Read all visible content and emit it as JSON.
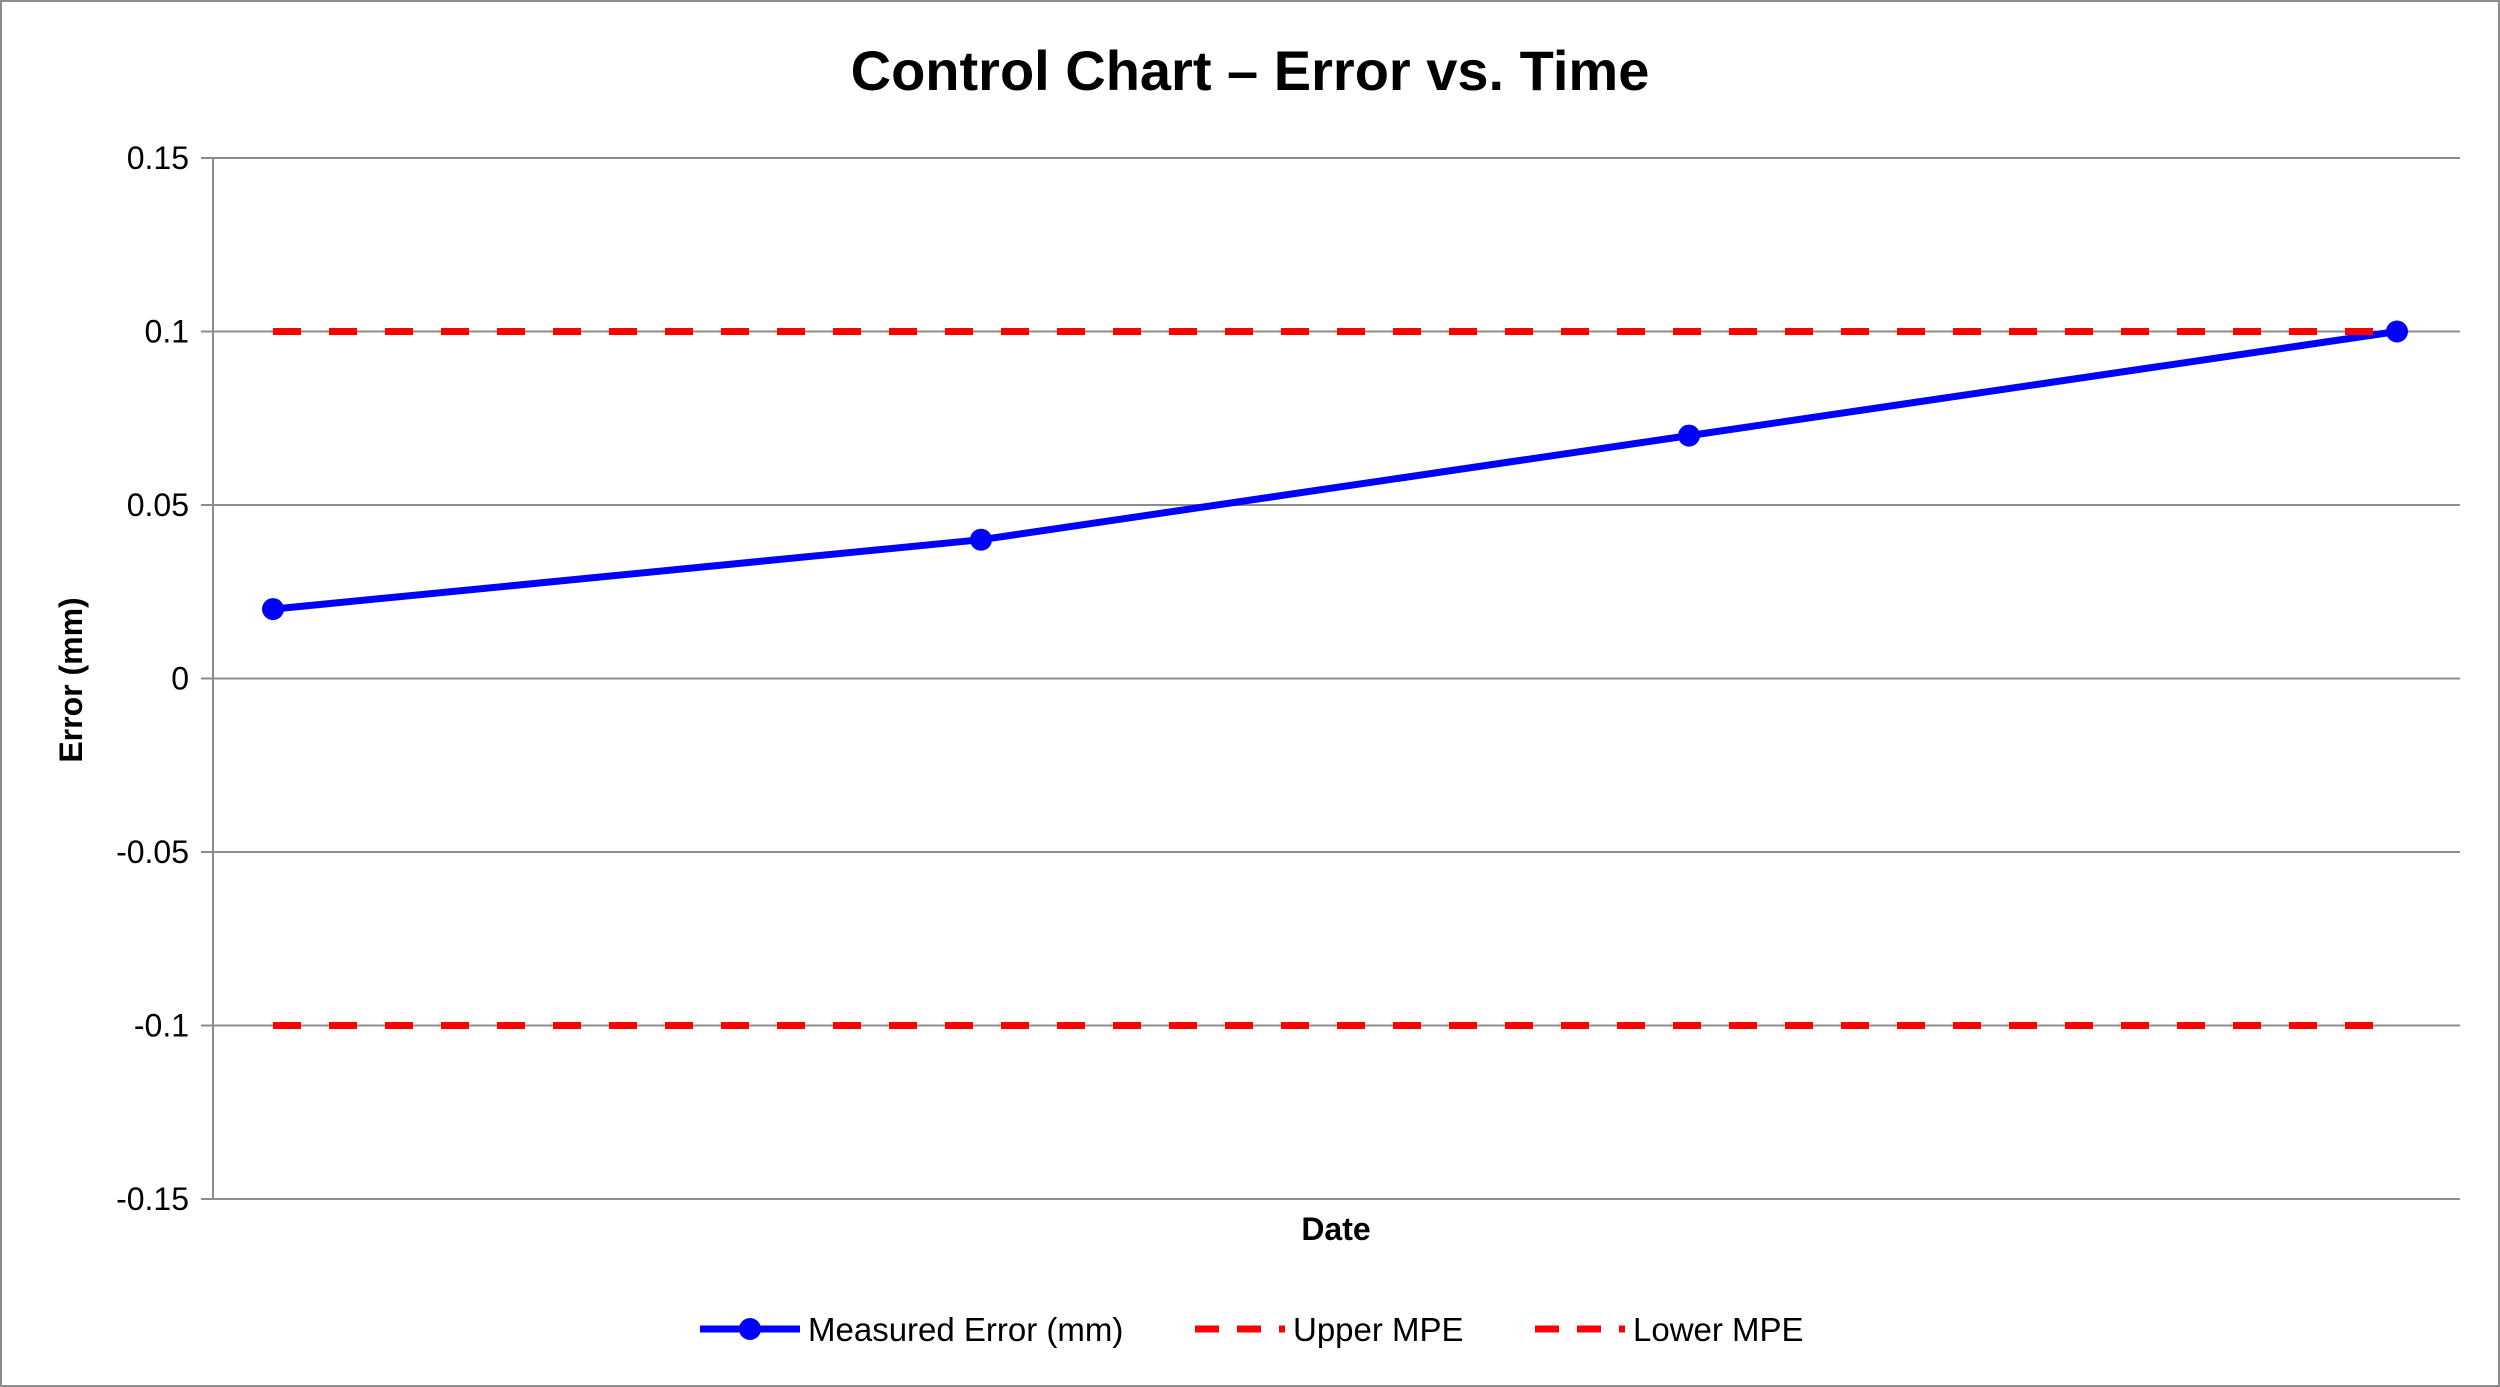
{
  "chart_data": {
    "type": "line",
    "title": "Control Chart – Error vs. Time",
    "xlabel": "Date",
    "ylabel": "Error (mm)",
    "ylim": [
      -0.15,
      0.15
    ],
    "yticks": [
      "0.15",
      "0.1",
      "0.05",
      "0",
      "-0.05",
      "-0.1",
      "-0.15"
    ],
    "ytick_values": [
      0.15,
      0.1,
      0.05,
      0,
      -0.05,
      -0.1,
      -0.15
    ],
    "grid": true,
    "legend_position": "bottom",
    "series": [
      {
        "name": "Measured Error (mm)",
        "values": [
          0.02,
          0.04,
          0.07,
          0.1
        ],
        "color": "#0000ff",
        "style": "solid",
        "markers": true
      },
      {
        "name": "Upper MPE",
        "values": [
          0.1,
          0.1,
          0.1,
          0.1
        ],
        "color": "#ff0000",
        "style": "dashed",
        "markers": false
      },
      {
        "name": "Lower MPE",
        "values": [
          -0.1,
          -0.1,
          -0.1,
          -0.1
        ],
        "color": "#ff0000",
        "style": "dashed",
        "markers": false
      }
    ]
  }
}
